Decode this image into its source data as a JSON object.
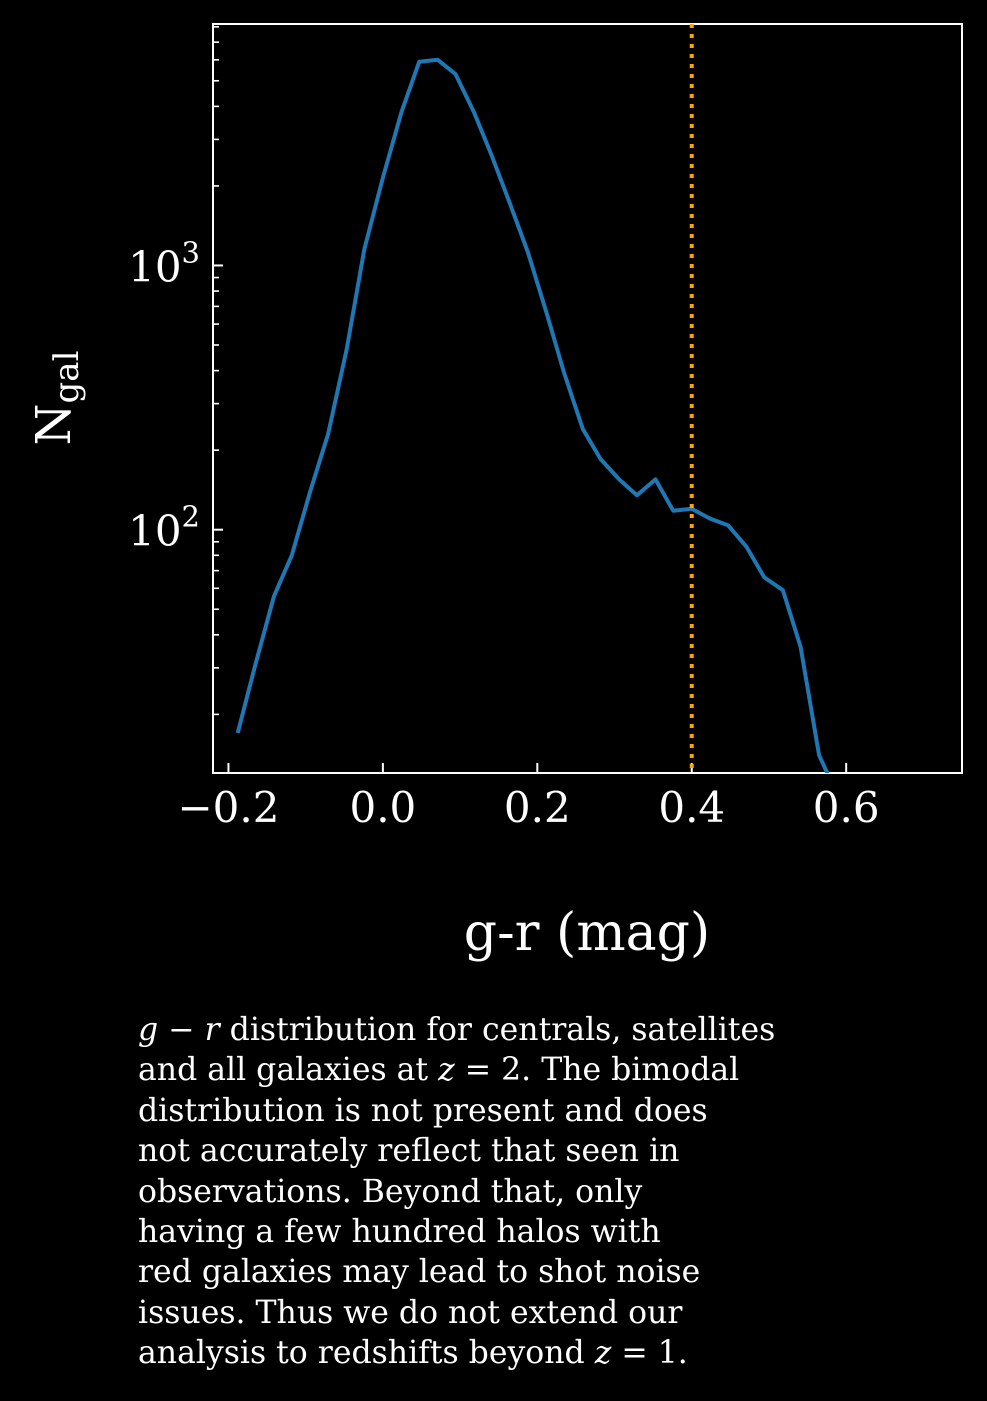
{
  "chart_data": {
    "type": "line",
    "xlabel": "g-r (mag)",
    "ylabel": "N",
    "ylabel_subscript": "gal",
    "xlim": [
      -0.22,
      0.75
    ],
    "ylim": [
      12,
      8200
    ],
    "yscale": "log",
    "x_ticks": [
      -0.2,
      0.0,
      0.2,
      0.4,
      0.6
    ],
    "x_tick_labels": [
      "−0.2",
      "0.0",
      "0.2",
      "0.4",
      "0.6"
    ],
    "y_ticks": [
      100,
      1000
    ],
    "y_tick_labels": [
      {
        "base": "10",
        "exp": "2"
      },
      {
        "base": "10",
        "exp": "3"
      }
    ],
    "grid": false,
    "series": [
      {
        "color": "#1f77b4",
        "x": [
          -0.188,
          -0.165,
          -0.141,
          -0.118,
          -0.094,
          -0.071,
          -0.047,
          -0.024,
          0.0,
          0.024,
          0.047,
          0.071,
          0.094,
          0.118,
          0.141,
          0.165,
          0.188,
          0.212,
          0.235,
          0.259,
          0.282,
          0.306,
          0.329,
          0.353,
          0.376,
          0.4,
          0.424,
          0.447,
          0.471,
          0.494,
          0.518,
          0.541,
          0.565,
          0.588
        ],
        "y": [
          17,
          31,
          56,
          80,
          140,
          230,
          480,
          1150,
          2150,
          3800,
          5900,
          6000,
          5300,
          3800,
          2600,
          1700,
          1120,
          660,
          390,
          240,
          185,
          155,
          135,
          155,
          118,
          120,
          110,
          104,
          86,
          66,
          59,
          36,
          14,
          10
        ]
      }
    ],
    "vlines": [
      {
        "x": 0.4,
        "color": "#ffa500",
        "style": "dotted"
      }
    ]
  },
  "caption": {
    "lines": [
      [
        {
          "t": "g",
          "i": true
        },
        {
          "t": " − "
        },
        {
          "t": "r",
          "i": true
        },
        {
          "t": " distribution for centrals, satellites"
        }
      ],
      [
        {
          "t": "and all galaxies at "
        },
        {
          "t": "z",
          "i": true
        },
        {
          "t": " = 2. The bimodal"
        }
      ],
      [
        {
          "t": "distribution is not present and does"
        }
      ],
      [
        {
          "t": "not accurately reflect that seen in"
        }
      ],
      [
        {
          "t": "observations. Beyond that, only"
        }
      ],
      [
        {
          "t": "having a few hundred halos with"
        }
      ],
      [
        {
          "t": "red galaxies may lead to shot noise"
        }
      ],
      [
        {
          "t": "issues. Thus we do not extend our"
        }
      ],
      [
        {
          "t": "analysis to redshifts beyond "
        },
        {
          "t": "z",
          "i": true
        },
        {
          "t": " = 1."
        }
      ]
    ]
  }
}
